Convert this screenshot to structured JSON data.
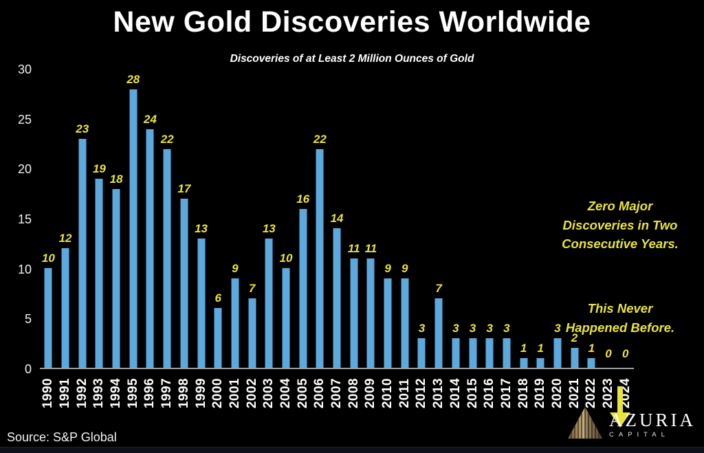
{
  "chart_data": {
    "type": "bar",
    "title": "New Gold Discoveries Worldwide",
    "subtitle": "Discoveries of at Least 2 Million Ounces of Gold",
    "categories": [
      1990,
      1991,
      1992,
      1993,
      1994,
      1995,
      1996,
      1997,
      1998,
      1999,
      2000,
      2001,
      2002,
      2003,
      2004,
      2005,
      2006,
      2007,
      2008,
      2009,
      2010,
      2011,
      2012,
      2013,
      2014,
      2015,
      2016,
      2017,
      2018,
      2019,
      2020,
      2021,
      2022,
      2023,
      2024
    ],
    "values": [
      10,
      12,
      23,
      19,
      18,
      28,
      24,
      22,
      17,
      13,
      6,
      9,
      7,
      13,
      10,
      16,
      22,
      14,
      11,
      11,
      9,
      9,
      3,
      7,
      3,
      3,
      3,
      3,
      1,
      1,
      3,
      2,
      1,
      0,
      0
    ],
    "ylim": [
      0,
      30
    ],
    "yticks": [
      0,
      5,
      10,
      15,
      20,
      25,
      30
    ],
    "grid": false,
    "legend": "none",
    "bar_color": "#5CA9DE",
    "data_label_color": "#E9E43B",
    "axis_color": "#9aa0a3",
    "background_color": "#000000"
  },
  "annotation": {
    "para1": "Zero Major\nDiscoveries in Two\nConsecutive Years.",
    "para2": "This Never\nHappened Before.",
    "arrow_color": "#E9E43B"
  },
  "source": "Source: S&P Global",
  "logo": {
    "name": "AZURIA",
    "subtitle": "CAPITAL"
  }
}
